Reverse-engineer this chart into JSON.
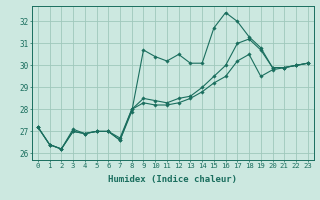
{
  "xlabel": "Humidex (Indice chaleur)",
  "bg_color": "#cce8e0",
  "grid_color": "#9fc8bc",
  "line_color": "#1a6e5e",
  "xlim": [
    -0.5,
    23.5
  ],
  "ylim": [
    25.7,
    32.7
  ],
  "xticks": [
    0,
    1,
    2,
    3,
    4,
    5,
    6,
    7,
    8,
    9,
    10,
    11,
    12,
    13,
    14,
    15,
    16,
    17,
    18,
    19,
    20,
    21,
    22,
    23
  ],
  "yticks": [
    26,
    27,
    28,
    29,
    30,
    31,
    32
  ],
  "line1": [
    27.2,
    26.4,
    26.2,
    27.1,
    26.9,
    27.0,
    27.0,
    26.6,
    27.9,
    30.7,
    30.4,
    30.2,
    30.5,
    30.1,
    30.1,
    31.7,
    32.4,
    32.0,
    31.3,
    30.8,
    29.9,
    29.9,
    30.0,
    30.1
  ],
  "line2": [
    27.2,
    26.4,
    26.2,
    27.0,
    26.9,
    27.0,
    27.0,
    26.6,
    28.0,
    28.5,
    28.4,
    28.3,
    28.5,
    28.6,
    29.0,
    29.5,
    30.0,
    31.0,
    31.2,
    30.7,
    29.9,
    29.9,
    30.0,
    30.1
  ],
  "line3": [
    27.2,
    26.4,
    26.2,
    27.0,
    26.9,
    27.0,
    27.0,
    26.7,
    28.0,
    28.3,
    28.2,
    28.2,
    28.3,
    28.5,
    28.8,
    29.2,
    29.5,
    30.2,
    30.5,
    29.5,
    29.8,
    29.9,
    30.0,
    30.1
  ],
  "tick_fontsize": 5.2,
  "xlabel_fontsize": 6.5
}
